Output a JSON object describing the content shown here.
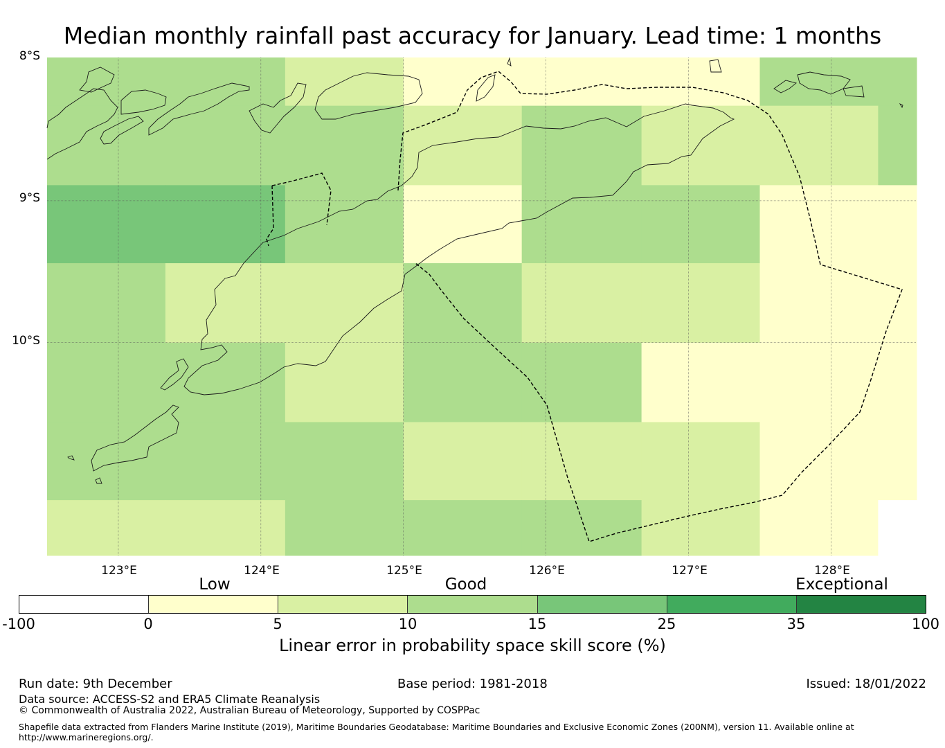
{
  "title": "Median monthly rainfall past accuracy for January. Lead time: 1 months",
  "map": {
    "lat_ticks": [
      "8°S",
      "9°S",
      "10°S"
    ],
    "lon_ticks": [
      "123°E",
      "124°E",
      "125°E",
      "126°E",
      "127°E",
      "128°E"
    ],
    "lon_range": [
      122.5,
      128.6
    ],
    "lat_range": [
      -7.99,
      -11.5
    ],
    "grid_lon_edges": [
      122.5,
      123.33,
      124.17,
      125.0,
      125.83,
      126.67,
      127.5,
      128.33,
      128.6
    ],
    "grid_lat_edges": [
      -7.99,
      -8.33,
      -8.89,
      -9.44,
      -10.0,
      -10.56,
      -11.11,
      -11.5
    ],
    "grid_categories": [
      [
        3,
        3,
        2,
        1,
        1,
        1,
        3,
        3
      ],
      [
        3,
        3,
        3,
        2,
        3,
        2,
        2,
        3
      ],
      [
        4,
        4,
        3,
        1,
        3,
        3,
        1,
        1
      ],
      [
        3,
        2,
        2,
        3,
        2,
        2,
        1,
        1
      ],
      [
        3,
        3,
        2,
        3,
        3,
        1,
        1,
        1
      ],
      [
        3,
        3,
        3,
        2,
        2,
        2,
        1,
        1
      ],
      [
        2,
        2,
        3,
        3,
        3,
        2,
        1,
        0
      ]
    ]
  },
  "colorbar": {
    "category_labels": [
      "Low",
      "Good",
      "Exceptional"
    ],
    "ticks": [
      "-100",
      "0",
      "5",
      "10",
      "15",
      "25",
      "35",
      "100"
    ],
    "colors": [
      "#ffffff",
      "#ffffcc",
      "#d9f0a3",
      "#addd8e",
      "#78c679",
      "#41ab5d",
      "#238443"
    ],
    "title": "Linear error in probability space skill score (%)"
  },
  "footer": {
    "run_date": "Run date: 9th December",
    "base_period": "Base period: 1981-2018",
    "issued": "Issued: 18/01/2022",
    "data_source": "Data source: ACCESS-S2 and ERA5 Climate Reanalysis",
    "copyright": "© Commonwealth of Australia 2022, Australian Bureau of Meteorology, Supported by COSPPac",
    "shapefile_line1": "Shapefile data extracted from Flanders Marine Institute (2019), Maritime Boundaries Geodatabase: Maritime Boundaries and Exclusive Economic Zones (200NM), version 11. Available online at",
    "shapefile_line2": "http://www.marineregions.org/."
  }
}
